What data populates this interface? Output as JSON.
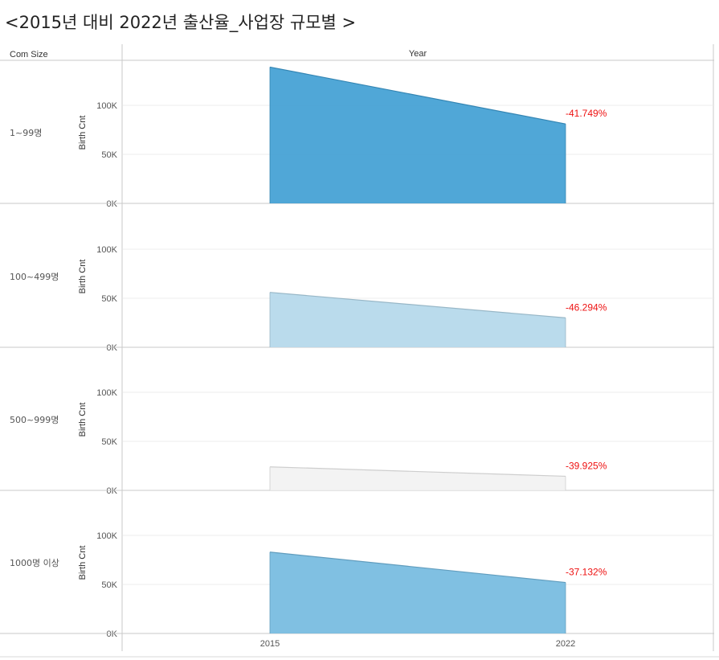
{
  "title": "<2015년 대비 2022년 출산율_사업장 규모별 >",
  "header": {
    "row_field": "Com Size",
    "col_field": "Year"
  },
  "chart_data": {
    "type": "area",
    "x": [
      "2015",
      "2022"
    ],
    "ylabel": "Birth Cnt",
    "ylim": [
      0,
      140000
    ],
    "yticks": [
      "0K",
      "50K",
      "100K"
    ],
    "grid": true,
    "panels": [
      {
        "label": "1~99명",
        "values": [
          139000,
          81000
        ],
        "change_label": "-41.749%",
        "color": "#3d9dd3"
      },
      {
        "label": "100~499명",
        "values": [
          56000,
          30000
        ],
        "change_label": "-46.294%",
        "color": "#b3d7ea"
      },
      {
        "label": "500~999명",
        "values": [
          24000,
          14400
        ],
        "change_label": "-39.925%",
        "color": "#f2f2f2"
      },
      {
        "label": "1000명 이상",
        "values": [
          83000,
          52000
        ],
        "change_label": "-37.132%",
        "color": "#72b9df"
      }
    ]
  }
}
